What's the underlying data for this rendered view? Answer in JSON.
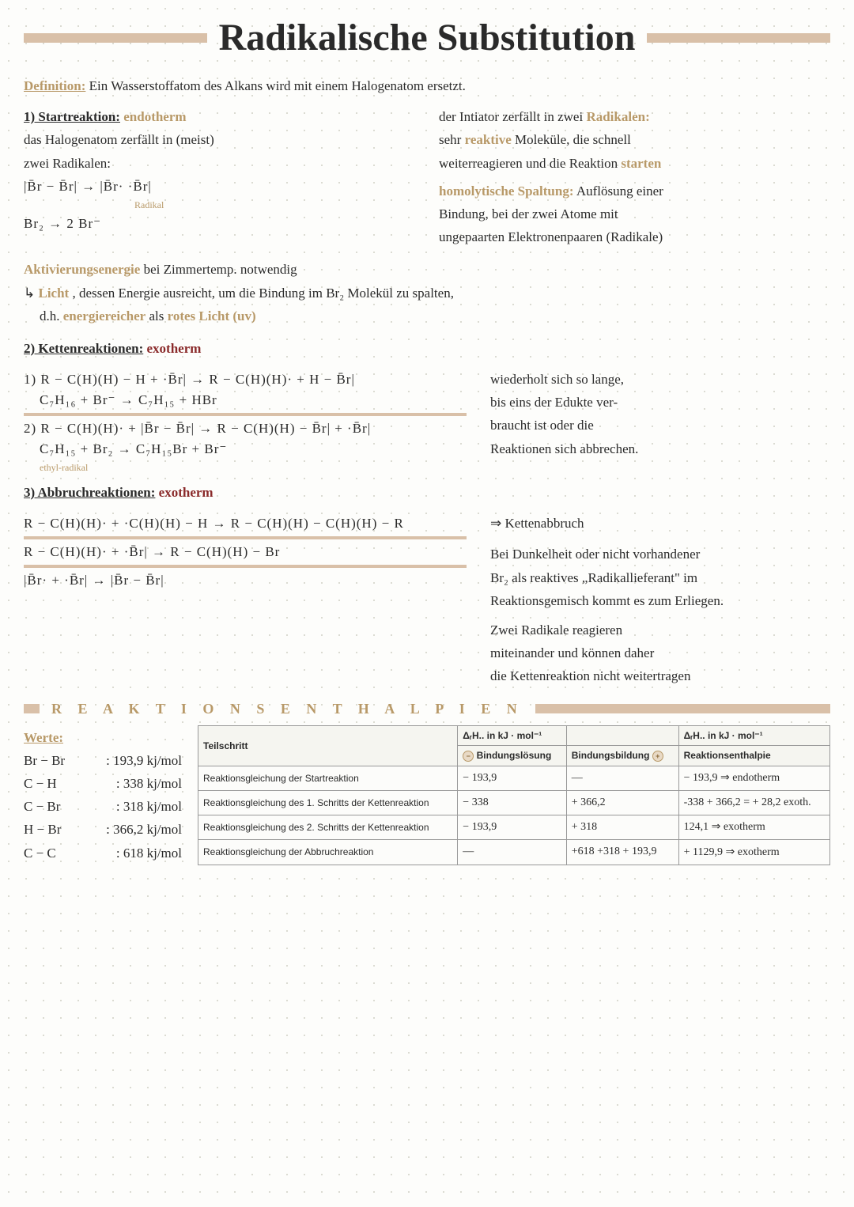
{
  "title": "Radikalische Substitution",
  "definition": {
    "label": "Definition:",
    "text": "Ein Wasserstoffatom des Alkans wird mit einem Halogenatom ersetzt."
  },
  "start": {
    "heading": "1) Startreaktion:",
    "thermo": "endotherm",
    "left1": "das Halogenatom zerfällt in (meist)",
    "left2": "zwei Radikalen:",
    "formula1": "|B̄r − B̄r|  →  |B̄r·  ·B̄r|",
    "radikal_note": "Radikal",
    "formula2": "Br₂  →  2 Br⁻",
    "right1a": "der Intiator zerfällt in zwei",
    "right1b": "Radikalen:",
    "right2a": "sehr",
    "right2b": "reaktive",
    "right2c": "Moleküle, die schnell",
    "right3a": "weiterreagieren und die Reaktion",
    "right3b": "starten",
    "right4a": "homolytische Spaltung:",
    "right4b": "Auflösung einer",
    "right5": "Bindung, bei der zwei Atome mit",
    "right6": "ungepaarten Elektronenpaaren (Radikale)"
  },
  "aktiv": {
    "label": "Aktivierungsenergie",
    "l1": "bei Zimmertemp. notwendig",
    "l2a": "↳",
    "l2b": "Licht",
    "l2c": ", dessen Energie ausreicht, um die Bindung im Br₂ Molekül zu spalten,",
    "l3a": "d.h.",
    "l3b": "energiereicher",
    "l3c": "als",
    "l3d": "rotes Licht (uv)"
  },
  "ketten": {
    "heading": "2) Kettenreaktionen:",
    "thermo": "exotherm",
    "eq1": "1)  R − C(H)(H) − H  +  ·B̄r|  →  R − C(H)(H)·  +  H − B̄r|",
    "eq1b": "C₇H₁₆   +   Br⁻   →   C₇H₁₅   +   HBr",
    "eq2": "2)  R − C(H)(H)·  +  |B̄r − B̄r|  →  R − C(H)(H) − B̄r|  +  ·B̄r|",
    "eq2b": "C₇H₁₅   +   Br₂   →   C₇H₁₅Br   +   Br⁻",
    "ethyl_note": "ethyl-radikal",
    "side1": "wiederholt sich so lange,",
    "side2": "bis eins der Edukte ver-",
    "side3": "braucht ist oder die",
    "side4": "Reaktionen sich abbrechen."
  },
  "abbruch": {
    "heading": "3) Abbruchreaktionen:",
    "thermo": "exotherm",
    "eq1": "R − C(H)(H)·  +  ·C(H)(H) − H  →  R − C(H)(H) − C(H)(H) − R",
    "arrow_label": "⇒ Kettenabbruch",
    "eq2": "R − C(H)(H)·  +  ·B̄r|  →  R − C(H)(H) − Br",
    "eq3": "|B̄r·  +  ·B̄r|  →  |B̄r − B̄r|",
    "side1": "Bei Dunkelheit oder nicht vorhandener",
    "side2": "Br₂ als reaktives „Radikallieferant\" im",
    "side3": "Reaktionsgemisch kommt es zum Erliegen.",
    "side4": "Zwei Radikale reagieren",
    "side5": "miteinander und können daher",
    "side6": "die Kettenreaktion nicht weitertragen"
  },
  "banner": "R E A K T I O N S   E N T H A L P I E N",
  "werte": {
    "heading": "Werte:",
    "rows": [
      {
        "k": "Br − Br",
        "v": ": 193,9  kj/mol"
      },
      {
        "k": "C − H",
        "v": ": 338    kj/mol"
      },
      {
        "k": "C − Br",
        "v": ": 318    kj/mol"
      },
      {
        "k": "H − Br",
        "v": ": 366,2  kj/mol"
      },
      {
        "k": "C − C",
        "v": ": 618    kj/mol"
      }
    ]
  },
  "table": {
    "head": {
      "c1": "Teilschritt",
      "c2": "ΔᵣH.. in kJ · mol⁻¹",
      "c3": "",
      "c4": "ΔᵣH.. in kJ · mol⁻¹"
    },
    "subhead": {
      "c2": "Bindungslösung",
      "c3": "Bindungsbildung",
      "c4": "Reaktionsenthalpie"
    },
    "rows": [
      {
        "c1": "Reaktionsgleichung der Startreaktion",
        "c2": "− 193,9",
        "c3": "―",
        "c4": "− 193,9  ⇒ endotherm"
      },
      {
        "c1": "Reaktionsgleichung des 1. Schritts der Kettenreaktion",
        "c2": "− 338",
        "c3": "+ 366,2",
        "c4": "-338 + 366,2 =  + 28,2 exoth."
      },
      {
        "c1": "Reaktionsgleichung des 2. Schritts der Kettenreaktion",
        "c2": "− 193,9",
        "c3": "+ 318",
        "c4": "124,1    ⇒ exotherm"
      },
      {
        "c1": "Reaktionsgleichung der Abbruchreaktion",
        "c2": "―",
        "c3": "+618 +318 + 193,9",
        "c4": "+ 1129,9  ⇒ exotherm"
      }
    ]
  },
  "colors": {
    "accent": "#b89968",
    "red": "#8a2a2a",
    "bar": "#d9c0a8"
  }
}
